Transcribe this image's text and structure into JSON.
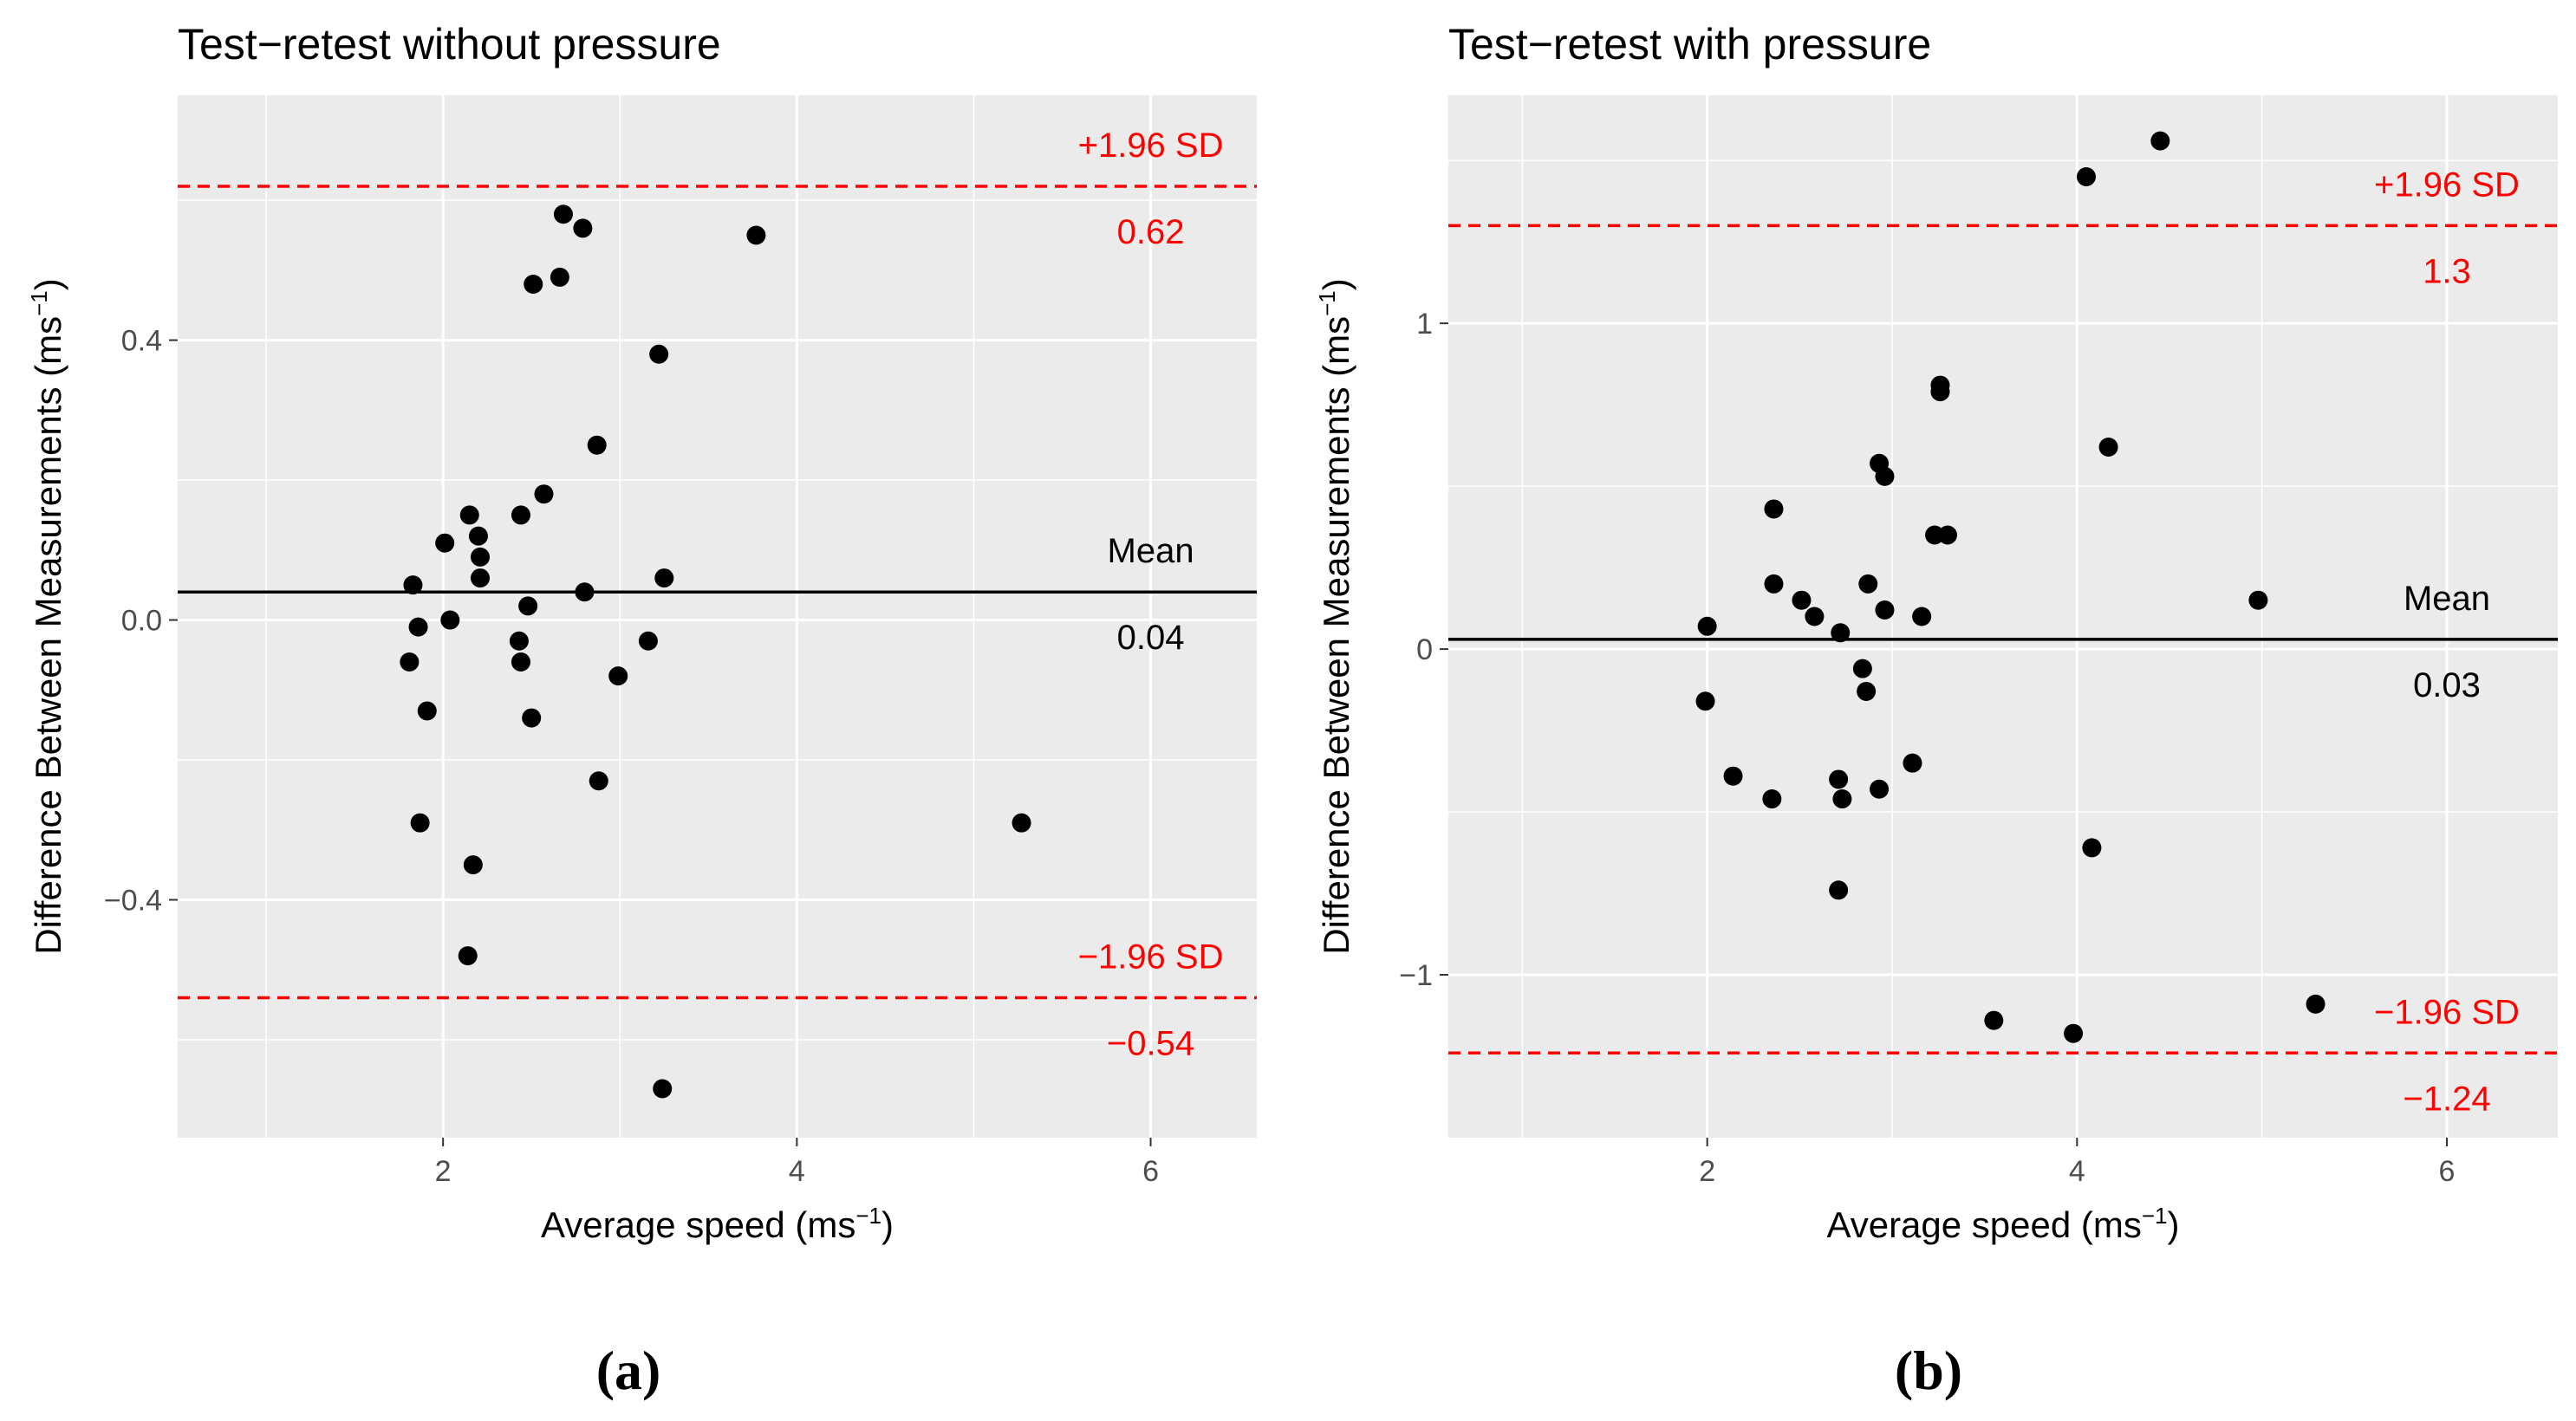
{
  "chart_data": [
    {
      "id": "a",
      "type": "scatter",
      "title": "Test−retest without pressure",
      "xlabel": "Average speed (ms",
      "xlabel_sup": "−1",
      "xlabel_end": ")",
      "ylabel": "Difference Between Measurements (ms",
      "ylabel_sup": "−1",
      "ylabel_end": ")",
      "xlim": [
        0.5,
        6.6
      ],
      "ylim": [
        -0.74,
        0.75
      ],
      "xticks": [
        2,
        4,
        6
      ],
      "xtick_labels": [
        "2",
        "4",
        "6"
      ],
      "xminor": [
        1,
        3,
        5
      ],
      "yticks": [
        -0.4,
        0.0,
        0.4
      ],
      "ytick_labels": [
        "−0.4",
        "0.0",
        "0.4"
      ],
      "yminor": [
        -0.6,
        -0.2,
        0.2,
        0.6
      ],
      "mean": 0.04,
      "upper_loa": 0.62,
      "lower_loa": -0.54,
      "annotations": {
        "mean_label": "Mean",
        "mean_value": "0.04",
        "upper_label": "+1.96 SD",
        "upper_value": "0.62",
        "lower_label": "−1.96 SD",
        "lower_value": "−0.54"
      },
      "points": [
        [
          2.68,
          0.58
        ],
        [
          2.79,
          0.56
        ],
        [
          2.66,
          0.49
        ],
        [
          2.51,
          0.48
        ],
        [
          3.77,
          0.55
        ],
        [
          3.22,
          0.38
        ],
        [
          2.87,
          0.25
        ],
        [
          2.57,
          0.18
        ],
        [
          2.15,
          0.15
        ],
        [
          2.44,
          0.15
        ],
        [
          2.2,
          0.12
        ],
        [
          2.01,
          0.11
        ],
        [
          2.21,
          0.09
        ],
        [
          2.21,
          0.06
        ],
        [
          1.83,
          0.05
        ],
        [
          3.25,
          0.06
        ],
        [
          2.8,
          0.04
        ],
        [
          2.48,
          0.02
        ],
        [
          2.04,
          0.0
        ],
        [
          1.86,
          -0.01
        ],
        [
          2.43,
          -0.03
        ],
        [
          3.16,
          -0.03
        ],
        [
          1.81,
          -0.06
        ],
        [
          2.44,
          -0.06
        ],
        [
          2.99,
          -0.08
        ],
        [
          1.91,
          -0.13
        ],
        [
          2.5,
          -0.14
        ],
        [
          2.88,
          -0.23
        ],
        [
          1.87,
          -0.29
        ],
        [
          5.27,
          -0.29
        ],
        [
          2.17,
          -0.35
        ],
        [
          2.14,
          -0.48
        ],
        [
          3.24,
          -0.67
        ]
      ]
    },
    {
      "id": "b",
      "type": "scatter",
      "title": "Test−retest with pressure",
      "xlabel": "Average speed (ms",
      "xlabel_sup": "−1",
      "xlabel_end": ")",
      "ylabel": "Difference Between Measurements (ms",
      "ylabel_sup": "−1",
      "ylabel_end": ")",
      "xlim": [
        0.6,
        6.6
      ],
      "ylim": [
        -1.5,
        1.7
      ],
      "xticks": [
        2,
        4,
        6
      ],
      "xtick_labels": [
        "2",
        "4",
        "6"
      ],
      "xminor": [
        1,
        3,
        5
      ],
      "yticks": [
        -1,
        0,
        1
      ],
      "ytick_labels": [
        "−1",
        "0",
        "1"
      ],
      "yminor": [
        -0.5,
        0.5,
        1.5
      ],
      "mean": 0.03,
      "upper_loa": 1.3,
      "lower_loa": -1.24,
      "annotations": {
        "mean_label": "Mean",
        "mean_value": "0.03",
        "upper_label": "+1.96 SD",
        "upper_value": "1.3",
        "lower_label": "−1.96 SD",
        "lower_value": "−1.24"
      },
      "points": [
        [
          4.45,
          1.56
        ],
        [
          4.05,
          1.45
        ],
        [
          3.26,
          0.81
        ],
        [
          3.26,
          0.79
        ],
        [
          4.17,
          0.62
        ],
        [
          2.93,
          0.57
        ],
        [
          2.96,
          0.53
        ],
        [
          2.36,
          0.43
        ],
        [
          3.23,
          0.35
        ],
        [
          3.3,
          0.35
        ],
        [
          2.36,
          0.2
        ],
        [
          2.87,
          0.2
        ],
        [
          2.51,
          0.15
        ],
        [
          4.98,
          0.15
        ],
        [
          2.58,
          0.1
        ],
        [
          2.96,
          0.12
        ],
        [
          3.16,
          0.1
        ],
        [
          2.0,
          0.07
        ],
        [
          2.72,
          0.05
        ],
        [
          2.84,
          -0.06
        ],
        [
          2.86,
          -0.13
        ],
        [
          1.99,
          -0.16
        ],
        [
          3.11,
          -0.35
        ],
        [
          2.14,
          -0.39
        ],
        [
          2.71,
          -0.4
        ],
        [
          2.93,
          -0.43
        ],
        [
          2.35,
          -0.46
        ],
        [
          2.73,
          -0.46
        ],
        [
          4.08,
          -0.61
        ],
        [
          2.71,
          -0.74
        ],
        [
          5.29,
          -1.09
        ],
        [
          3.55,
          -1.14
        ],
        [
          3.98,
          -1.18
        ]
      ]
    }
  ],
  "captions": [
    "(a)",
    "(b)"
  ]
}
